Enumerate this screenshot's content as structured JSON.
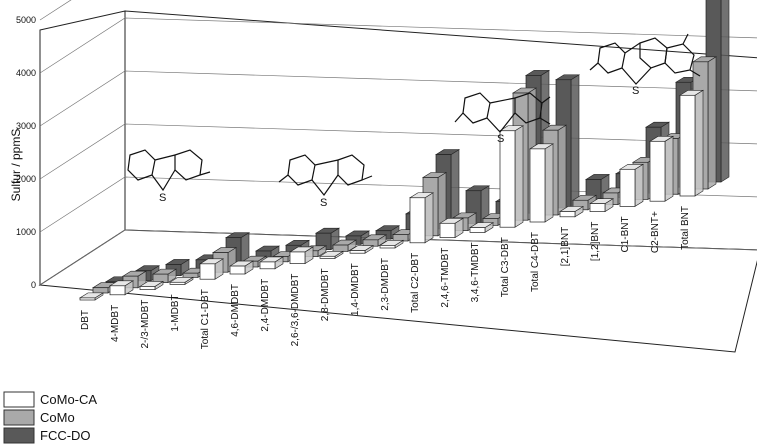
{
  "chart_data": {
    "type": "bar",
    "title": "",
    "xlabel": "",
    "ylabel": "Sulfur / ppmS",
    "ylim": [
      0,
      5000
    ],
    "yticks": [
      0,
      1000,
      2000,
      3000,
      4000,
      5000
    ],
    "grid": true,
    "legend_position": "bottom-left",
    "categories": [
      "DBT",
      "4-MDBT",
      "2-/3-MDBT",
      "1-MDBT",
      "Total C1-DBT",
      "4,6-DMDBT",
      "2,4-DMDBT",
      "2,6-/3,6-DMDBT",
      "2,8-DMDBT",
      "1,4-DMDBT",
      "2,3-DMDBT",
      "Total C2-DBT",
      "2,4,6-TMDBT",
      "3,4,6-TMDBT",
      "Total C3-DBT",
      "Total C4-DBT",
      "[2,1]BNT",
      "[1,2]BNT",
      "C1-BNT",
      "C2-BNT+",
      "Total BNT"
    ],
    "series": [
      {
        "name": "CoMo-CA",
        "color": "#ffffff",
        "values": [
          40,
          170,
          60,
          40,
          290,
          150,
          130,
          220,
          40,
          50,
          50,
          850,
          270,
          90,
          1820,
          1380,
          100,
          150,
          700,
          1130,
          1900
        ]
      },
      {
        "name": "CoMo",
        "color": "#a9a9a9",
        "values": [
          100,
          220,
          160,
          80,
          370,
          110,
          100,
          110,
          120,
          120,
          120,
          1100,
          240,
          130,
          2400,
          1600,
          180,
          220,
          700,
          1050,
          2400
        ]
      },
      {
        "name": "FCC-DO",
        "color": "#595959",
        "values": [
          80,
          190,
          210,
          200,
          520,
          170,
          180,
          310,
          160,
          160,
          380,
          1400,
          620,
          320,
          2600,
          2420,
          440,
          450,
          1230,
          1980,
          4000
        ]
      }
    ]
  },
  "legend": {
    "items": [
      {
        "label": "CoMo-CA",
        "color": "#ffffff"
      },
      {
        "label": "CoMo",
        "color": "#a9a9a9"
      },
      {
        "label": "FCC-DO",
        "color": "#595959"
      }
    ]
  },
  "structures": [
    {
      "heteroatom": "S"
    },
    {
      "heteroatom": "S"
    },
    {
      "heteroatom": "S"
    },
    {
      "heteroatom": "S"
    }
  ]
}
